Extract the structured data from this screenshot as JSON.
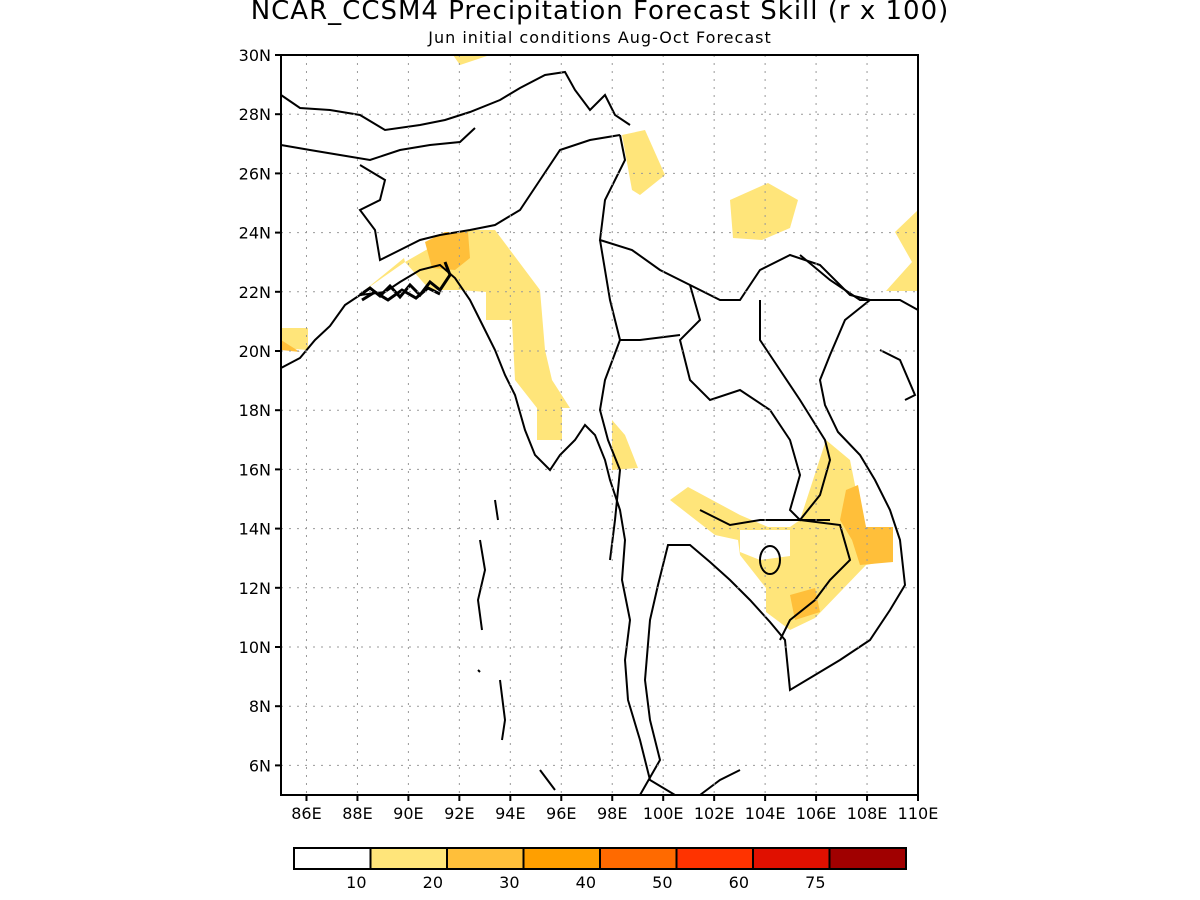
{
  "title": "NCAR_CCSM4 Precipitation Forecast Skill (r x 100)",
  "subtitle": "Jun initial conditions  Aug-Oct Forecast",
  "map": {
    "lat_range": [
      5,
      30
    ],
    "lon_range": [
      85,
      110
    ],
    "lat_ticks": [
      "30N",
      "28N",
      "26N",
      "24N",
      "22N",
      "20N",
      "18N",
      "16N",
      "14N",
      "12N",
      "10N",
      "8N",
      "6N"
    ],
    "lon_ticks": [
      "86E",
      "88E",
      "90E",
      "92E",
      "94E",
      "96E",
      "98E",
      "100E",
      "102E",
      "104E",
      "106E",
      "108E",
      "110E"
    ],
    "grid": "dotted"
  },
  "colorbar": {
    "labels": [
      "10",
      "20",
      "30",
      "40",
      "50",
      "60",
      "75"
    ],
    "colors": [
      "#ffffff",
      "#ffe57a",
      "#ffbf3a",
      "#ff9f00",
      "#ff6a00",
      "#ff3300",
      "#e01000",
      "#a00000"
    ]
  },
  "skill_regions": [
    {
      "level": 1,
      "color": "#ffe57a",
      "description": "Myanmar west coast band"
    },
    {
      "level": 1,
      "color": "#ffe57a",
      "description": "Cambodia / Laos / Vietnam"
    },
    {
      "level": 2,
      "color": "#ffbf3a",
      "description": "Central Vietnam highlands"
    },
    {
      "level": 1,
      "color": "#ffe57a",
      "description": "Northern Thailand"
    },
    {
      "level": 1,
      "color": "#ffe57a",
      "description": "Southern China"
    }
  ]
}
